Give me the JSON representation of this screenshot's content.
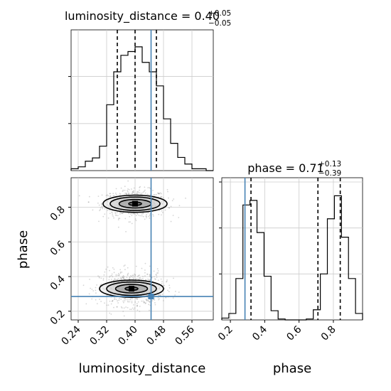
{
  "chart_data": {
    "type": "corner",
    "parameters": [
      "luminosity_distance",
      "phase"
    ],
    "truth": {
      "luminosity_distance": 0.445,
      "phase": 0.285
    },
    "luminosity_distance": {
      "title_name": "luminosity_distance",
      "title_value": "0.40",
      "title_plus": "+0.05",
      "title_minus": "−0.05",
      "quantiles": [
        0.35,
        0.4,
        0.46
      ],
      "xlim": [
        0.22,
        0.62
      ],
      "ticks": [
        0.24,
        0.32,
        0.4,
        0.48,
        0.56
      ],
      "tick_labels": [
        "0.24",
        "0.32",
        "0.40",
        "0.48",
        "0.56"
      ],
      "hist_edges": [
        0.22,
        0.24,
        0.26,
        0.28,
        0.3,
        0.32,
        0.34,
        0.36,
        0.38,
        0.4,
        0.42,
        0.44,
        0.46,
        0.48,
        0.5,
        0.52,
        0.54,
        0.56,
        0.58,
        0.6,
        0.62
      ],
      "hist_counts": [
        4,
        8,
        20,
        27,
        52,
        140,
        210,
        245,
        253,
        263,
        230,
        210,
        180,
        110,
        58,
        28,
        14,
        4,
        4,
        0
      ],
      "hist_ymax": 290,
      "hist_yticks": [
        100,
        200,
        300
      ]
    },
    "phase": {
      "title_name": "phase",
      "title_value": "0.71",
      "title_plus": "+0.13",
      "title_minus": "−0.39",
      "quantiles": [
        0.32,
        0.71,
        0.84
      ],
      "xlim": [
        0.15,
        0.97
      ],
      "ticks": [
        0.2,
        0.4,
        0.6,
        0.8
      ],
      "tick_labels": [
        "0.2",
        "0.4",
        "0.6",
        "0.8"
      ],
      "hist_edges": [
        0.15,
        0.191,
        0.232,
        0.273,
        0.314,
        0.355,
        0.396,
        0.437,
        0.478,
        0.519,
        0.56,
        0.601,
        0.642,
        0.683,
        0.724,
        0.765,
        0.806,
        0.847,
        0.888,
        0.929,
        0.97
      ],
      "hist_counts": [
        4,
        14,
        90,
        250,
        260,
        190,
        95,
        20,
        2,
        0,
        0,
        0,
        2,
        22,
        100,
        220,
        270,
        180,
        90,
        14
      ],
      "hist_ymax": 300,
      "hist_yticks": [
        100,
        200,
        300
      ]
    },
    "scatter_2d": {
      "xlabel": "luminosity_distance",
      "ylabel": "phase",
      "ylim": [
        0.15,
        0.97
      ],
      "yticks": [
        0.2,
        0.4,
        0.6,
        0.8
      ],
      "ytick_labels": [
        "0.2",
        "0.4",
        "0.6",
        "0.8"
      ],
      "clusters": [
        {
          "center_x": 0.4,
          "center_y": 0.82,
          "sigma_x": 0.045,
          "sigma_y": 0.04
        },
        {
          "center_x": 0.39,
          "center_y": 0.33,
          "sigma_x": 0.045,
          "sigma_y": 0.05
        }
      ],
      "contour_levels": [
        {
          "rx": 0.018,
          "ry": 0.018
        },
        {
          "rx": 0.045,
          "ry": 0.045
        },
        {
          "rx": 0.07,
          "ry": 0.07
        },
        {
          "rx": 0.09,
          "ry": 0.09
        }
      ]
    },
    "colors": {
      "hist": "#000000",
      "truth": "#4682b4",
      "grid": "#cccccc",
      "points": "#888888"
    }
  }
}
